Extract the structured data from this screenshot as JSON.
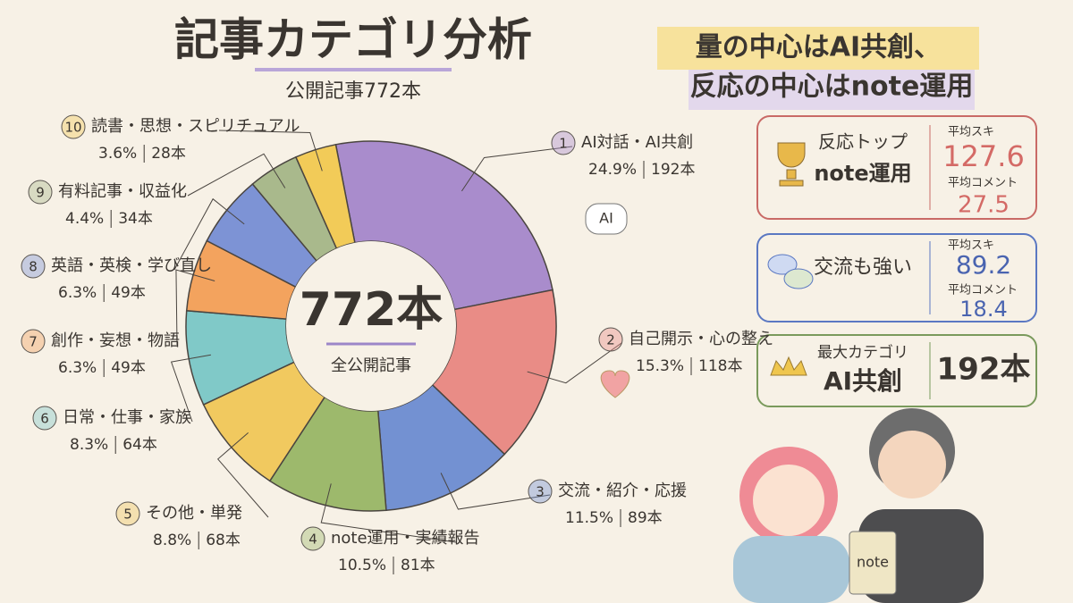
{
  "chart_data": {
    "type": "donut",
    "title": "記事カテゴリ分析",
    "subtitle": "公開記事772本",
    "center": {
      "value": 772,
      "label": "772本"
    },
    "center_caption": "全公開記事",
    "numbers": [
      1,
      2,
      3,
      4,
      5,
      6,
      7,
      8,
      9,
      10
    ],
    "categories": [
      "AI対話・AI共創",
      "自己開示・心の整え",
      "交流・紹介・応援",
      "note運用・実績報告",
      "その他・単発",
      "日常・仕事・家族",
      "創作・妄想・物語",
      "英語・英検・学び直し",
      "有料記事・収益化",
      "読書・思想・スピリチュアル"
    ],
    "values": [
      24.9,
      15.3,
      11.5,
      10.5,
      8.8,
      8.3,
      6.3,
      6.3,
      4.4,
      3.6
    ],
    "value_labels": [
      "24.9%",
      "15.3%",
      "11.5%",
      "10.5%",
      "8.8%",
      "8.3%",
      "6.3%",
      "6.3%",
      "4.4%",
      "3.6%"
    ],
    "counts": [
      192,
      118,
      89,
      81,
      68,
      64,
      49,
      49,
      34,
      28
    ],
    "count_labels": [
      "192本",
      "118本",
      "89本",
      "81本",
      "68本",
      "64本",
      "49本",
      "49本",
      "34本",
      "28本"
    ],
    "colors": [
      "#a98ccc",
      "#e98c86",
      "#7391d2",
      "#9db96c",
      "#f1c95f",
      "#80c9c8",
      "#f3a35e",
      "#7d93d5",
      "#a9b98c",
      "#f2cb58"
    ],
    "callout": [
      "量の中心はAI共創、",
      "反応の中心はnote運用"
    ],
    "cards": [
      {
        "heading": "反応トップ",
        "name": "note運用",
        "metric1": "平均スキ",
        "value1": 127.6,
        "metric2": "平均コメント",
        "value2": 27.5
      },
      {
        "heading": "交流も強い",
        "metric1": "平均スキ",
        "value1": 89.2,
        "metric2": "平均コメント",
        "value2": 18.4
      },
      {
        "heading": "最大カテゴリ",
        "name": "AI共創",
        "value1": {
          "value": 192,
          "label": "192本"
        }
      }
    ],
    "icons": {
      "bubble": "AI",
      "notebook": "note"
    }
  }
}
